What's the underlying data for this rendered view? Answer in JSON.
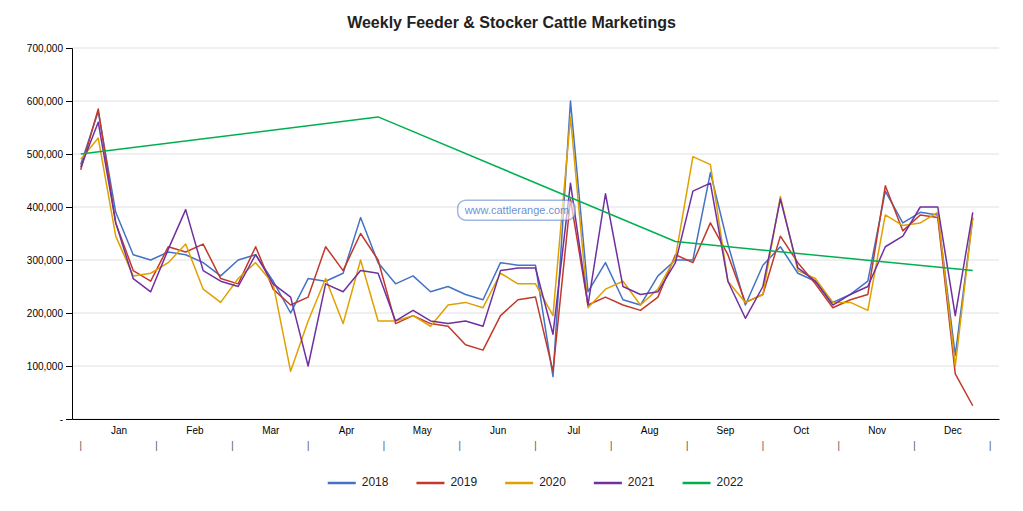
{
  "chart_data": {
    "type": "line",
    "title": "Weekly Feeder & Stocker Cattle Marketings",
    "xlim": [
      -0.5,
      52.5
    ],
    "xticks": [
      {
        "value": 2.165,
        "label": "Jan"
      },
      {
        "value": 6.5,
        "label": "Feb"
      },
      {
        "value": 10.835,
        "label": "Mar"
      },
      {
        "value": 15.165,
        "label": "Apr"
      },
      {
        "value": 19.5,
        "label": "May"
      },
      {
        "value": 23.835,
        "label": "Jun"
      },
      {
        "value": 28.165,
        "label": "Jul"
      },
      {
        "value": 32.5,
        "label": "Aug"
      },
      {
        "value": 36.835,
        "label": "Sep"
      },
      {
        "value": 41.165,
        "label": "Oct"
      },
      {
        "value": 45.5,
        "label": "Nov"
      },
      {
        "value": 49.835,
        "label": "Dec"
      }
    ],
    "ylim": [
      0,
      700000
    ],
    "yticks": [
      {
        "value": 0,
        "label": "-"
      },
      {
        "value": 100000,
        "label": "100,000"
      },
      {
        "value": 200000,
        "label": "200,000"
      },
      {
        "value": 300000,
        "label": "300,000"
      },
      {
        "value": 400000,
        "label": "400,000"
      },
      {
        "value": 500000,
        "label": "500,000"
      },
      {
        "value": 600000,
        "label": "600,000"
      },
      {
        "value": 700000,
        "label": "700,000"
      }
    ],
    "grid": true,
    "legend": "bottom",
    "annotations": [
      {
        "text": "|",
        "x": 0
      },
      {
        "text": "|",
        "x": 4.33
      },
      {
        "text": "|",
        "x": 8.67
      },
      {
        "text": "|",
        "x": 13
      },
      {
        "text": "|",
        "x": 17.33
      },
      {
        "text": "|",
        "x": 21.67
      },
      {
        "text": "|",
        "x": 26
      },
      {
        "text": "|",
        "x": 30.33
      },
      {
        "text": "|",
        "x": 34.67
      },
      {
        "text": "|",
        "x": 39
      },
      {
        "text": "|",
        "x": 43.33
      },
      {
        "text": "|",
        "x": 47.67
      },
      {
        "text": "|",
        "x": 52
      },
      {
        "text": "www.cattlerange.com"
      }
    ],
    "series": [
      {
        "name": "2018",
        "color": "#4472C4",
        "x": [
          0,
          1,
          2,
          3,
          4,
          5,
          6,
          7,
          8,
          9,
          10,
          11,
          12,
          13,
          14,
          15,
          16,
          17,
          18,
          19,
          20,
          21,
          22,
          23,
          24,
          25,
          26,
          27,
          28,
          29,
          30,
          31,
          32,
          33,
          34,
          35,
          36,
          37,
          38,
          39,
          40,
          41,
          42,
          43,
          44,
          45,
          46,
          47,
          48,
          49,
          50,
          51
        ],
        "values": [
          480000,
          580000,
          390000,
          310000,
          300000,
          315000,
          310000,
          295000,
          270000,
          300000,
          310000,
          260000,
          200000,
          265000,
          260000,
          275000,
          380000,
          295000,
          255000,
          270000,
          240000,
          250000,
          235000,
          225000,
          295000,
          290000,
          290000,
          80000,
          600000,
          240000,
          295000,
          225000,
          215000,
          270000,
          300000,
          300000,
          465000,
          330000,
          215000,
          290000,
          325000,
          275000,
          260000,
          220000,
          235000,
          260000,
          430000,
          370000,
          390000,
          385000,
          120000,
          380000
        ]
      },
      {
        "name": "2019",
        "color": "#C0392B",
        "x": [
          0,
          1,
          2,
          3,
          4,
          5,
          6,
          7,
          8,
          9,
          10,
          11,
          12,
          13,
          14,
          15,
          16,
          17,
          18,
          19,
          20,
          21,
          22,
          23,
          24,
          25,
          26,
          27,
          28,
          29,
          30,
          31,
          32,
          33,
          34,
          35,
          36,
          37,
          38,
          39,
          40,
          41,
          42,
          43,
          44,
          45,
          46,
          47,
          48,
          49,
          50,
          51
        ],
        "values": [
          470000,
          585000,
          370000,
          280000,
          260000,
          325000,
          315000,
          330000,
          265000,
          255000,
          325000,
          245000,
          215000,
          230000,
          325000,
          280000,
          350000,
          300000,
          180000,
          195000,
          180000,
          175000,
          140000,
          130000,
          195000,
          225000,
          230000,
          90000,
          415000,
          215000,
          230000,
          215000,
          205000,
          230000,
          310000,
          295000,
          370000,
          310000,
          220000,
          235000,
          345000,
          295000,
          255000,
          210000,
          225000,
          235000,
          440000,
          355000,
          385000,
          380000,
          85000,
          25000
        ]
      },
      {
        "name": "2020",
        "color": "#E0A000",
        "x": [
          0,
          1,
          2,
          3,
          4,
          5,
          6,
          7,
          8,
          9,
          10,
          11,
          12,
          13,
          14,
          15,
          16,
          17,
          18,
          19,
          20,
          21,
          22,
          23,
          24,
          25,
          26,
          27,
          28,
          29,
          30,
          31,
          32,
          33,
          34,
          35,
          36,
          37,
          38,
          39,
          40,
          41,
          42,
          43,
          44,
          45,
          46,
          47,
          48,
          49,
          50,
          51
        ],
        "values": [
          490000,
          530000,
          345000,
          270000,
          275000,
          295000,
          330000,
          245000,
          220000,
          265000,
          295000,
          255000,
          90000,
          185000,
          265000,
          180000,
          300000,
          185000,
          185000,
          195000,
          175000,
          215000,
          220000,
          210000,
          275000,
          255000,
          255000,
          195000,
          570000,
          210000,
          245000,
          260000,
          215000,
          245000,
          305000,
          495000,
          480000,
          260000,
          220000,
          235000,
          420000,
          280000,
          265000,
          220000,
          220000,
          205000,
          385000,
          365000,
          370000,
          390000,
          100000,
          380000
        ]
      },
      {
        "name": "2021",
        "color": "#7030A0",
        "x": [
          0,
          1,
          2,
          3,
          4,
          5,
          6,
          7,
          8,
          9,
          10,
          11,
          12,
          13,
          14,
          15,
          16,
          17,
          18,
          19,
          20,
          21,
          22,
          23,
          24,
          25,
          26,
          27,
          28,
          29,
          30,
          31,
          32,
          33,
          34,
          35,
          36,
          37,
          38,
          39,
          40,
          41,
          42,
          43,
          44,
          45,
          46,
          47,
          48,
          49,
          50,
          51
        ],
        "values": [
          475000,
          560000,
          370000,
          265000,
          240000,
          320000,
          395000,
          280000,
          260000,
          250000,
          310000,
          255000,
          230000,
          100000,
          255000,
          240000,
          280000,
          275000,
          185000,
          205000,
          185000,
          180000,
          185000,
          175000,
          280000,
          285000,
          285000,
          160000,
          445000,
          215000,
          425000,
          250000,
          235000,
          240000,
          295000,
          430000,
          445000,
          260000,
          190000,
          250000,
          415000,
          285000,
          260000,
          215000,
          235000,
          250000,
          325000,
          345000,
          400000,
          400000,
          195000,
          390000
        ]
      },
      {
        "name": "2022",
        "color": "#00B050",
        "x": [
          0,
          17,
          34,
          51
        ],
        "values": [
          500000,
          570000,
          335000,
          280000
        ]
      }
    ]
  }
}
